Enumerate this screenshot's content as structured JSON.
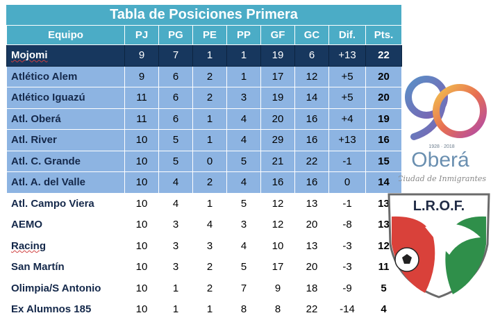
{
  "title": "Tabla de Posiciones Primera",
  "columns": [
    "Equipo",
    "PJ",
    "PG",
    "PE",
    "PP",
    "GF",
    "GC",
    "Dif.",
    "Pts."
  ],
  "rows": [
    [
      "Mojomi",
      "9",
      "7",
      "1",
      "1",
      "19",
      "6",
      "+13",
      "22"
    ],
    [
      "Atlético Alem",
      "9",
      "6",
      "2",
      "1",
      "17",
      "12",
      "+5",
      "20"
    ],
    [
      "Atlético Iguazú",
      "11",
      "6",
      "2",
      "3",
      "19",
      "14",
      "+5",
      "20"
    ],
    [
      "Atl. Oberá",
      "11",
      "6",
      "1",
      "4",
      "20",
      "16",
      "+4",
      "19"
    ],
    [
      "Atl. River",
      "10",
      "5",
      "1",
      "4",
      "29",
      "16",
      "+13",
      "16"
    ],
    [
      "Atl. C. Grande",
      "10",
      "5",
      "0",
      "5",
      "21",
      "22",
      "-1",
      "15"
    ],
    [
      "Atl. A. del Valle",
      "10",
      "4",
      "2",
      "4",
      "16",
      "16",
      "0",
      "14"
    ],
    [
      "Atl. Campo Viera",
      "10",
      "4",
      "1",
      "5",
      "12",
      "13",
      "-1",
      "13"
    ],
    [
      "AEMO",
      "10",
      "3",
      "4",
      "3",
      "12",
      "20",
      "-8",
      "13"
    ],
    [
      "Racing",
      "10",
      "3",
      "3",
      "4",
      "10",
      "13",
      "-3",
      "12"
    ],
    [
      "San Martín",
      "10",
      "3",
      "2",
      "5",
      "17",
      "20",
      "-3",
      "11"
    ],
    [
      "Olimpia/S Antonio",
      "10",
      "1",
      "2",
      "7",
      "9",
      "18",
      "-9",
      "5"
    ],
    [
      "Ex Alumnos 185",
      "10",
      "1",
      "1",
      "8",
      "8",
      "22",
      "-14",
      "4"
    ]
  ],
  "logos": {
    "obera": {
      "years": "1928 · 2018",
      "name": "Oberá",
      "tagline": "Ciudad de Inmigrantes"
    },
    "lrof": {
      "text": "L.R.O.F."
    }
  },
  "colors": {
    "header": "#4bacc6",
    "leader": "#17375e",
    "highlight": "#8db4e2"
  }
}
